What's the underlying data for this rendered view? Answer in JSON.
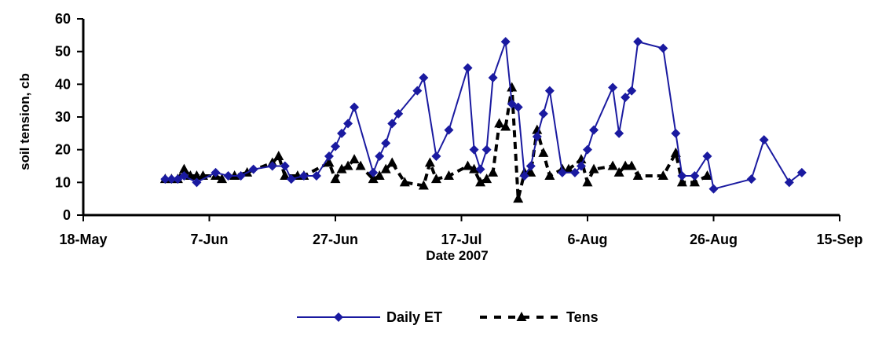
{
  "chart_data": {
    "type": "line",
    "title": "",
    "xlabel": "Date 2007",
    "ylabel": "soil tension, cb",
    "x_axis": {
      "type": "date",
      "range": [
        "2007-05-18",
        "2007-09-15"
      ],
      "ticks": [
        "2007-05-18",
        "2007-06-07",
        "2007-06-27",
        "2007-07-17",
        "2007-08-06",
        "2007-08-26",
        "2007-09-15"
      ],
      "tick_labels": [
        "18-May",
        "7-Jun",
        "27-Jun",
        "17-Jul",
        "6-Aug",
        "26-Aug",
        "15-Sep"
      ]
    },
    "y_axis": {
      "range": [
        0,
        60
      ],
      "ticks": [
        0,
        10,
        20,
        30,
        40,
        50,
        60
      ],
      "tick_labels": [
        "0",
        "10",
        "20",
        "30",
        "40",
        "50",
        "60"
      ]
    },
    "grid": false,
    "legend": {
      "position": "bottom"
    },
    "series": [
      {
        "name": "Daily ET",
        "color": "#1a1aa0",
        "line": "solid",
        "marker": "diamond",
        "points": [
          [
            "2007-05-31",
            11
          ],
          [
            "2007-06-01",
            11
          ],
          [
            "2007-06-02",
            11
          ],
          [
            "2007-06-03",
            12
          ],
          [
            "2007-06-05",
            10
          ],
          [
            "2007-06-08",
            13
          ],
          [
            "2007-06-10",
            12
          ],
          [
            "2007-06-12",
            12
          ],
          [
            "2007-06-14",
            14
          ],
          [
            "2007-06-17",
            15
          ],
          [
            "2007-06-19",
            15
          ],
          [
            "2007-06-20",
            11
          ],
          [
            "2007-06-22",
            12
          ],
          [
            "2007-06-24",
            12
          ],
          [
            "2007-06-26",
            18
          ],
          [
            "2007-06-27",
            21
          ],
          [
            "2007-06-28",
            25
          ],
          [
            "2007-06-29",
            28
          ],
          [
            "2007-06-30",
            33
          ],
          [
            "2007-07-03",
            13
          ],
          [
            "2007-07-04",
            18
          ],
          [
            "2007-07-05",
            22
          ],
          [
            "2007-07-06",
            28
          ],
          [
            "2007-07-07",
            31
          ],
          [
            "2007-07-10",
            38
          ],
          [
            "2007-07-11",
            42
          ],
          [
            "2007-07-13",
            18
          ],
          [
            "2007-07-15",
            26
          ],
          [
            "2007-07-18",
            45
          ],
          [
            "2007-07-19",
            20
          ],
          [
            "2007-07-20",
            14
          ],
          [
            "2007-07-21",
            20
          ],
          [
            "2007-07-22",
            42
          ],
          [
            "2007-07-24",
            53
          ],
          [
            "2007-07-25",
            34
          ],
          [
            "2007-07-26",
            33
          ],
          [
            "2007-07-27",
            12
          ],
          [
            "2007-07-28",
            15
          ],
          [
            "2007-07-29",
            24
          ],
          [
            "2007-07-30",
            31
          ],
          [
            "2007-07-31",
            38
          ],
          [
            "2007-08-02",
            13
          ],
          [
            "2007-08-04",
            13
          ],
          [
            "2007-08-05",
            15
          ],
          [
            "2007-08-06",
            20
          ],
          [
            "2007-08-07",
            26
          ],
          [
            "2007-08-10",
            39
          ],
          [
            "2007-08-11",
            25
          ],
          [
            "2007-08-12",
            36
          ],
          [
            "2007-08-13",
            38
          ],
          [
            "2007-08-14",
            53
          ],
          [
            "2007-08-18",
            51
          ],
          [
            "2007-08-20",
            25
          ],
          [
            "2007-08-21",
            12
          ],
          [
            "2007-08-23",
            12
          ],
          [
            "2007-08-25",
            18
          ],
          [
            "2007-08-26",
            8
          ],
          [
            "2007-09-01",
            11
          ],
          [
            "2007-09-03",
            23
          ],
          [
            "2007-09-07",
            10
          ],
          [
            "2007-09-09",
            13
          ]
        ]
      },
      {
        "name": "Tens",
        "color": "#000000",
        "line": "dashed",
        "marker": "triangle",
        "points": [
          [
            "2007-05-31",
            11
          ],
          [
            "2007-06-01",
            11
          ],
          [
            "2007-06-02",
            11
          ],
          [
            "2007-06-03",
            14
          ],
          [
            "2007-06-04",
            12
          ],
          [
            "2007-06-05",
            12
          ],
          [
            "2007-06-06",
            12
          ],
          [
            "2007-06-08",
            12
          ],
          [
            "2007-06-09",
            11
          ],
          [
            "2007-06-11",
            12
          ],
          [
            "2007-06-13",
            13
          ],
          [
            "2007-06-17",
            16
          ],
          [
            "2007-06-18",
            18
          ],
          [
            "2007-06-19",
            12
          ],
          [
            "2007-06-21",
            12
          ],
          [
            "2007-06-22",
            12
          ],
          [
            "2007-06-26",
            16
          ],
          [
            "2007-06-27",
            11
          ],
          [
            "2007-06-28",
            14
          ],
          [
            "2007-06-29",
            15
          ],
          [
            "2007-06-30",
            17
          ],
          [
            "2007-07-01",
            15
          ],
          [
            "2007-07-03",
            11
          ],
          [
            "2007-07-04",
            12
          ],
          [
            "2007-07-05",
            14
          ],
          [
            "2007-07-06",
            16
          ],
          [
            "2007-07-08",
            10
          ],
          [
            "2007-07-11",
            9
          ],
          [
            "2007-07-12",
            16
          ],
          [
            "2007-07-13",
            11
          ],
          [
            "2007-07-15",
            12
          ],
          [
            "2007-07-18",
            15
          ],
          [
            "2007-07-19",
            14
          ],
          [
            "2007-07-20",
            10
          ],
          [
            "2007-07-21",
            11
          ],
          [
            "2007-07-22",
            13
          ],
          [
            "2007-07-23",
            28
          ],
          [
            "2007-07-24",
            27
          ],
          [
            "2007-07-25",
            39
          ],
          [
            "2007-07-26",
            5
          ],
          [
            "2007-07-27",
            13
          ],
          [
            "2007-07-28",
            13
          ],
          [
            "2007-07-29",
            26
          ],
          [
            "2007-07-30",
            19
          ],
          [
            "2007-07-31",
            12
          ],
          [
            "2007-08-02",
            14
          ],
          [
            "2007-08-03",
            14
          ],
          [
            "2007-08-05",
            17
          ],
          [
            "2007-08-06",
            10
          ],
          [
            "2007-08-07",
            14
          ],
          [
            "2007-08-10",
            15
          ],
          [
            "2007-08-11",
            13
          ],
          [
            "2007-08-12",
            15
          ],
          [
            "2007-08-13",
            15
          ],
          [
            "2007-08-14",
            12
          ],
          [
            "2007-08-18",
            12
          ],
          [
            "2007-08-20",
            19
          ],
          [
            "2007-08-21",
            10
          ],
          [
            "2007-08-23",
            10
          ],
          [
            "2007-08-25",
            12
          ]
        ]
      }
    ]
  }
}
